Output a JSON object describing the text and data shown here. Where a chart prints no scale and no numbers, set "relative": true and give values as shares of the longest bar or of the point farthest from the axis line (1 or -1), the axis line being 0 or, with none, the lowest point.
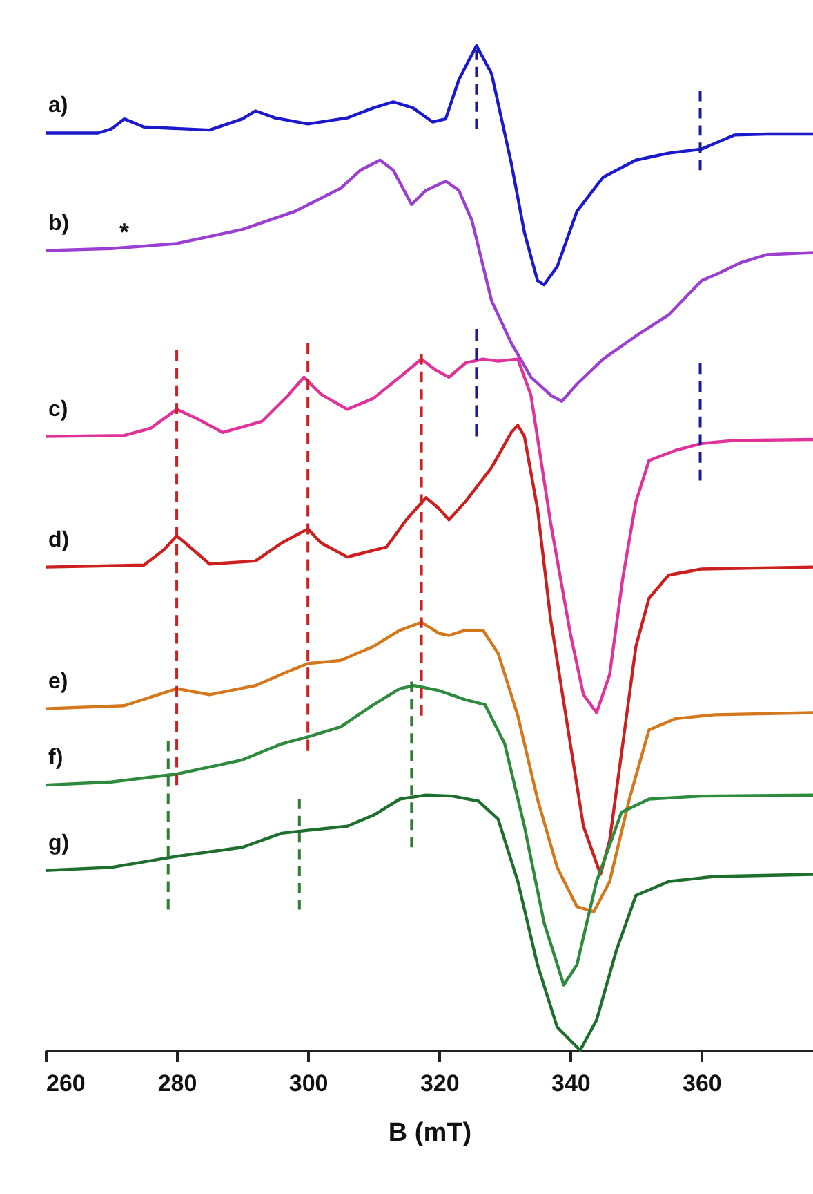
{
  "chart_data": {
    "type": "line",
    "relative": true,
    "xlabel": "B (mT)",
    "xlim": [
      260,
      377
    ],
    "xticks": [
      260,
      280,
      300,
      320,
      340,
      360
    ],
    "grid": false,
    "legend": false,
    "line_style": "solid",
    "tick_labels": "x",
    "annotations": [
      {
        "text": "*",
        "x": 272,
        "y": 0.799
      }
    ],
    "series": [
      {
        "name": "a)",
        "color": "#1a1acc",
        "x": [
          260,
          268,
          270,
          272,
          275,
          285,
          290,
          292,
          295,
          300,
          306,
          310,
          313,
          316,
          319,
          321,
          323,
          325.7,
          328,
          331,
          333,
          335,
          336,
          338,
          341,
          345,
          350,
          355,
          360,
          365,
          370,
          377
        ],
        "values": [
          0.913,
          0.913,
          0.917,
          0.927,
          0.919,
          0.916,
          0.927,
          0.935,
          0.928,
          0.922,
          0.928,
          0.938,
          0.944,
          0.938,
          0.924,
          0.927,
          0.966,
          1.0,
          0.972,
          0.883,
          0.814,
          0.766,
          0.762,
          0.78,
          0.835,
          0.869,
          0.886,
          0.893,
          0.897,
          0.911,
          0.912,
          0.912
        ]
      },
      {
        "name": "b)",
        "color": "#9b3fd0",
        "x": [
          260,
          270,
          280,
          290,
          298,
          305,
          308,
          311,
          313,
          315.8,
          318,
          321,
          323,
          325,
          328,
          331,
          334,
          337,
          338.7,
          341,
          345,
          350,
          355,
          360,
          362.5,
          366,
          370,
          377
        ],
        "values": [
          0.796,
          0.798,
          0.803,
          0.817,
          0.835,
          0.858,
          0.876,
          0.886,
          0.876,
          0.842,
          0.856,
          0.865,
          0.856,
          0.826,
          0.746,
          0.704,
          0.67,
          0.652,
          0.646,
          0.663,
          0.688,
          0.711,
          0.732,
          0.766,
          0.773,
          0.784,
          0.792,
          0.794
        ]
      },
      {
        "name": "c)",
        "color": "#e0339a",
        "x": [
          260,
          272,
          276,
          280,
          283,
          287,
          293,
          297,
          299.4,
          302,
          306,
          310,
          314,
          317.3,
          319.5,
          321.5,
          324,
          326.7,
          329,
          332,
          334,
          337,
          340,
          342,
          344,
          346,
          348,
          350,
          352,
          356,
          360,
          365,
          377
        ],
        "values": [
          0.611,
          0.612,
          0.619,
          0.638,
          0.629,
          0.615,
          0.626,
          0.652,
          0.67,
          0.653,
          0.638,
          0.649,
          0.67,
          0.688,
          0.677,
          0.67,
          0.684,
          0.688,
          0.686,
          0.688,
          0.652,
          0.525,
          0.415,
          0.354,
          0.336,
          0.374,
          0.47,
          0.546,
          0.587,
          0.597,
          0.604,
          0.607,
          0.608
        ]
      },
      {
        "name": "d)",
        "color": "#cc1f1f",
        "x": [
          260,
          275,
          278,
          280,
          282,
          285,
          292,
          296,
          300,
          302,
          306,
          312,
          315,
          318,
          320,
          321.5,
          324,
          328,
          331,
          332,
          333,
          335,
          337,
          340,
          342,
          344.6,
          346,
          348,
          350,
          352,
          355,
          360,
          377
        ],
        "values": [
          0.481,
          0.483,
          0.498,
          0.512,
          0.501,
          0.484,
          0.487,
          0.505,
          0.519,
          0.505,
          0.491,
          0.501,
          0.528,
          0.55,
          0.539,
          0.528,
          0.546,
          0.58,
          0.615,
          0.622,
          0.611,
          0.539,
          0.429,
          0.305,
          0.223,
          0.175,
          0.209,
          0.305,
          0.402,
          0.45,
          0.473,
          0.479,
          0.481
        ]
      },
      {
        "name": "e)",
        "color": "#d4781e",
        "x": [
          260,
          272,
          280,
          285,
          292,
          297,
          300,
          305,
          310,
          314,
          317.3,
          320,
          321.5,
          324,
          326.7,
          329,
          332,
          335,
          338,
          341,
          343.6,
          346,
          349,
          352,
          356,
          362,
          377
        ],
        "values": [
          0.34,
          0.343,
          0.36,
          0.354,
          0.363,
          0.377,
          0.385,
          0.388,
          0.402,
          0.418,
          0.426,
          0.415,
          0.413,
          0.418,
          0.418,
          0.395,
          0.333,
          0.25,
          0.182,
          0.143,
          0.138,
          0.168,
          0.25,
          0.319,
          0.33,
          0.334,
          0.336
        ]
      },
      {
        "name": "f)",
        "color": "#2e8b3e",
        "x": [
          260,
          270,
          280,
          290,
          296,
          300,
          305,
          310,
          314,
          316.2,
          320,
          324,
          327,
          330,
          333,
          336,
          339,
          341,
          344,
          347.8,
          352,
          360,
          377
        ],
        "values": [
          0.264,
          0.267,
          0.275,
          0.289,
          0.305,
          0.312,
          0.322,
          0.344,
          0.36,
          0.363,
          0.358,
          0.349,
          0.344,
          0.305,
          0.223,
          0.127,
          0.065,
          0.085,
          0.168,
          0.237,
          0.25,
          0.253,
          0.254
        ]
      },
      {
        "name": "g)",
        "color": "#1e6e2e",
        "x": [
          260,
          270,
          280,
          290,
          296,
          300,
          306,
          310,
          314,
          318,
          322,
          326,
          329,
          332,
          335,
          338,
          341.5,
          344,
          347,
          350,
          355,
          362,
          377
        ],
        "values": [
          0.179,
          0.182,
          0.193,
          0.202,
          0.216,
          0.219,
          0.223,
          0.234,
          0.25,
          0.254,
          0.253,
          0.248,
          0.23,
          0.168,
          0.085,
          0.023,
          0.0,
          0.03,
          0.099,
          0.154,
          0.168,
          0.173,
          0.175
        ]
      },
      {
        "type": "line",
        "line_style": "dashed",
        "color": "#1a1a99",
        "x": [
          325.7,
          325.7
        ],
        "values": [
          0.996,
          0.917
        ]
      },
      {
        "type": "line",
        "line_style": "dashed",
        "color": "#1a1a99",
        "x": [
          325.7,
          325.7
        ],
        "values": [
          0.718,
          0.611
        ]
      },
      {
        "type": "line",
        "line_style": "dashed",
        "color": "#1a1a99",
        "x": [
          359.8,
          359.8
        ],
        "values": [
          0.955,
          0.876
        ]
      },
      {
        "type": "line",
        "line_style": "dashed",
        "color": "#1a1a99",
        "x": [
          359.8,
          359.8
        ],
        "values": [
          0.684,
          0.567
        ]
      },
      {
        "type": "line",
        "line_style": "dashed",
        "color": "#cc2222",
        "x": [
          280,
          280
        ],
        "values": [
          0.697,
          0.264
        ]
      },
      {
        "type": "line",
        "line_style": "dashed",
        "color": "#cc2222",
        "x": [
          300,
          300
        ],
        "values": [
          0.704,
          0.298
        ]
      },
      {
        "type": "line",
        "line_style": "dashed",
        "color": "#cc2222",
        "x": [
          317.3,
          317.3
        ],
        "values": [
          0.693,
          0.333
        ]
      },
      {
        "type": "line",
        "line_style": "dashed",
        "color": "#2e7d32",
        "x": [
          278.7,
          278.7
        ],
        "values": [
          0.308,
          0.14
        ]
      },
      {
        "type": "line",
        "line_style": "dashed",
        "color": "#2e7d32",
        "x": [
          298.7,
          298.7
        ],
        "values": [
          0.25,
          0.14
        ]
      },
      {
        "type": "line",
        "line_style": "dashed",
        "color": "#2e7d32",
        "x": [
          315.8,
          315.8
        ],
        "values": [
          0.367,
          0.202
        ]
      }
    ]
  }
}
